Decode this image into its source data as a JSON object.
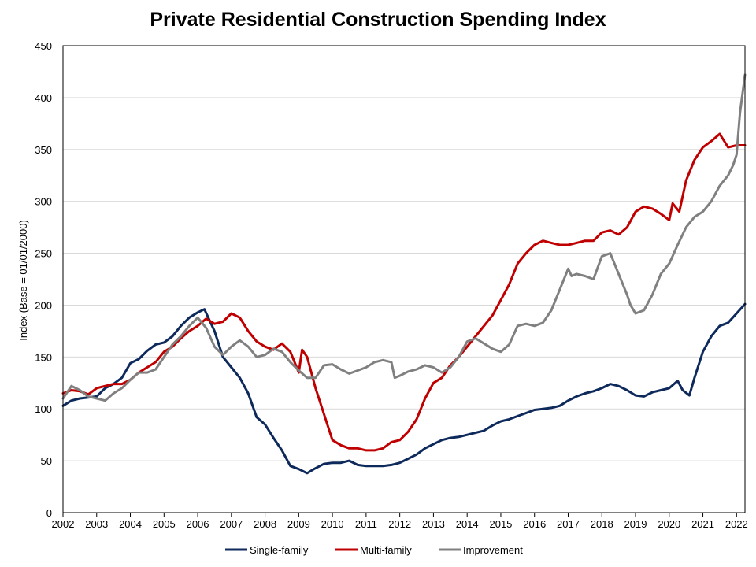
{
  "chart_data": {
    "type": "line",
    "title": "Private Residential Construction Spending Index",
    "ylabel": "Index  (Base = 01/01/2000)",
    "xlabel": "",
    "ylim": [
      0,
      450
    ],
    "yticks": [
      0,
      50,
      100,
      150,
      200,
      250,
      300,
      350,
      400,
      450
    ],
    "xlim": [
      2002.0,
      2022.25
    ],
    "xticks": [
      2002,
      2003,
      2004,
      2005,
      2006,
      2007,
      2008,
      2009,
      2010,
      2011,
      2012,
      2013,
      2014,
      2015,
      2016,
      2017,
      2018,
      2019,
      2020,
      2021,
      2022
    ],
    "grid": "horizontal",
    "legend_position": "bottom",
    "series": [
      {
        "name": "Single-family",
        "color": "#0e2a5c",
        "x": [
          2002.0,
          2002.25,
          2002.5,
          2002.75,
          2003.0,
          2003.25,
          2003.5,
          2003.75,
          2004.0,
          2004.25,
          2004.5,
          2004.75,
          2005.0,
          2005.25,
          2005.5,
          2005.75,
          2006.0,
          2006.2,
          2006.5,
          2006.75,
          2007.0,
          2007.25,
          2007.5,
          2007.75,
          2008.0,
          2008.25,
          2008.5,
          2008.75,
          2009.0,
          2009.25,
          2009.45,
          2009.75,
          2010.0,
          2010.25,
          2010.5,
          2010.75,
          2011.0,
          2011.25,
          2011.5,
          2011.75,
          2012.0,
          2012.25,
          2012.5,
          2012.75,
          2013.0,
          2013.25,
          2013.5,
          2013.75,
          2014.0,
          2014.25,
          2014.5,
          2014.75,
          2015.0,
          2015.25,
          2015.5,
          2015.75,
          2016.0,
          2016.25,
          2016.5,
          2016.75,
          2017.0,
          2017.25,
          2017.5,
          2017.75,
          2018.0,
          2018.25,
          2018.5,
          2018.75,
          2019.0,
          2019.25,
          2019.5,
          2019.75,
          2020.0,
          2020.25,
          2020.4,
          2020.6,
          2020.75,
          2021.0,
          2021.25,
          2021.5,
          2021.75,
          2022.0,
          2022.25
        ],
        "values": [
          103,
          108,
          110,
          111,
          112,
          120,
          124,
          130,
          144,
          148,
          156,
          162,
          164,
          170,
          180,
          188,
          193,
          196,
          175,
          150,
          140,
          130,
          115,
          92,
          85,
          72,
          60,
          45,
          42,
          38,
          42,
          47,
          48,
          48,
          50,
          46,
          45,
          45,
          45,
          46,
          48,
          52,
          56,
          62,
          66,
          70,
          72,
          73,
          75,
          77,
          79,
          84,
          88,
          90,
          93,
          96,
          99,
          100,
          101,
          103,
          108,
          112,
          115,
          117,
          120,
          124,
          122,
          118,
          113,
          112,
          116,
          118,
          120,
          127,
          118,
          113,
          130,
          155,
          170,
          180,
          183,
          192,
          201
        ]
      },
      {
        "name": "Multi-family",
        "color": "#c00000",
        "x": [
          2002.0,
          2002.25,
          2002.5,
          2002.75,
          2003.0,
          2003.25,
          2003.5,
          2003.75,
          2004.0,
          2004.25,
          2004.5,
          2004.75,
          2005.0,
          2005.25,
          2005.5,
          2005.75,
          2006.0,
          2006.25,
          2006.5,
          2006.75,
          2007.0,
          2007.25,
          2007.5,
          2007.75,
          2008.0,
          2008.25,
          2008.5,
          2008.75,
          2009.0,
          2009.1,
          2009.25,
          2009.5,
          2009.75,
          2010.0,
          2010.25,
          2010.5,
          2010.75,
          2011.0,
          2011.25,
          2011.5,
          2011.75,
          2012.0,
          2012.25,
          2012.5,
          2012.75,
          2013.0,
          2013.25,
          2013.5,
          2013.75,
          2014.0,
          2014.25,
          2014.5,
          2014.75,
          2015.0,
          2015.25,
          2015.5,
          2015.75,
          2016.0,
          2016.25,
          2016.5,
          2016.75,
          2017.0,
          2017.25,
          2017.5,
          2017.75,
          2018.0,
          2018.25,
          2018.5,
          2018.75,
          2019.0,
          2019.25,
          2019.5,
          2019.75,
          2020.0,
          2020.1,
          2020.3,
          2020.5,
          2020.75,
          2021.0,
          2021.25,
          2021.5,
          2021.75,
          2022.0,
          2022.25
        ],
        "values": [
          115,
          118,
          117,
          114,
          120,
          122,
          124,
          124,
          128,
          135,
          140,
          145,
          155,
          160,
          168,
          175,
          180,
          187,
          182,
          184,
          192,
          188,
          175,
          165,
          160,
          157,
          163,
          155,
          135,
          157,
          150,
          120,
          95,
          70,
          65,
          62,
          62,
          60,
          60,
          62,
          68,
          70,
          78,
          90,
          110,
          125,
          130,
          142,
          150,
          160,
          170,
          180,
          190,
          205,
          220,
          240,
          250,
          258,
          262,
          260,
          258,
          258,
          260,
          262,
          262,
          270,
          272,
          268,
          275,
          290,
          295,
          293,
          288,
          282,
          298,
          290,
          320,
          340,
          352,
          358,
          365,
          352,
          354,
          354
        ]
      },
      {
        "name": "Improvement",
        "color": "#808080",
        "x": [
          2002.0,
          2002.25,
          2002.5,
          2002.75,
          2003.0,
          2003.25,
          2003.5,
          2003.75,
          2004.0,
          2004.25,
          2004.5,
          2004.75,
          2005.0,
          2005.25,
          2005.5,
          2005.75,
          2006.0,
          2006.25,
          2006.5,
          2006.75,
          2007.0,
          2007.25,
          2007.5,
          2007.75,
          2008.0,
          2008.25,
          2008.5,
          2008.75,
          2009.0,
          2009.25,
          2009.5,
          2009.75,
          2010.0,
          2010.25,
          2010.5,
          2010.75,
          2011.0,
          2011.25,
          2011.5,
          2011.75,
          2011.85,
          2012.0,
          2012.25,
          2012.5,
          2012.75,
          2013.0,
          2013.25,
          2013.5,
          2013.75,
          2014.0,
          2014.25,
          2014.5,
          2014.75,
          2015.0,
          2015.25,
          2015.5,
          2015.75,
          2016.0,
          2016.25,
          2016.5,
          2016.75,
          2017.0,
          2017.1,
          2017.25,
          2017.5,
          2017.75,
          2018.0,
          2018.25,
          2018.5,
          2018.75,
          2018.85,
          2019.0,
          2019.25,
          2019.5,
          2019.75,
          2020.0,
          2020.25,
          2020.5,
          2020.75,
          2021.0,
          2021.25,
          2021.5,
          2021.75,
          2021.9,
          2022.0,
          2022.1,
          2022.25
        ],
        "values": [
          110,
          122,
          118,
          112,
          110,
          108,
          115,
          120,
          128,
          135,
          135,
          138,
          150,
          162,
          170,
          180,
          188,
          178,
          160,
          152,
          160,
          166,
          160,
          150,
          152,
          158,
          155,
          145,
          137,
          130,
          130,
          142,
          143,
          138,
          134,
          137,
          140,
          145,
          147,
          145,
          130,
          132,
          136,
          138,
          142,
          140,
          135,
          140,
          150,
          165,
          168,
          163,
          158,
          155,
          162,
          180,
          182,
          180,
          183,
          195,
          215,
          235,
          228,
          230,
          228,
          225,
          247,
          250,
          230,
          210,
          200,
          192,
          195,
          210,
          230,
          240,
          258,
          275,
          285,
          290,
          300,
          315,
          325,
          335,
          345,
          385,
          422
        ]
      }
    ]
  }
}
